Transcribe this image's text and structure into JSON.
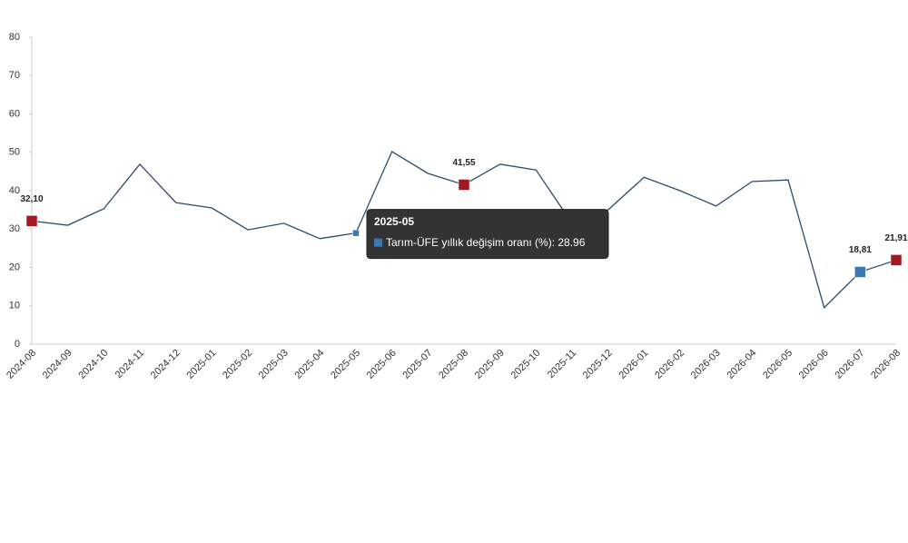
{
  "chart_data": {
    "type": "line",
    "categories": [
      "2024-08",
      "2024-09",
      "2024-10",
      "2024-11",
      "2024-12",
      "2025-01",
      "2025-02",
      "2025-03",
      "2025-04",
      "2025-05",
      "2025-06",
      "2025-07",
      "2025-08",
      "2025-09",
      "2025-10",
      "2025-11",
      "2025-12",
      "2026-01",
      "2026-02",
      "2026-03",
      "2026-04",
      "2026-05",
      "2026-06",
      "2026-07",
      "2026-08"
    ],
    "series": [
      {
        "name": "Tarım-ÜFE yıllık değişim oranı (%)",
        "color": "#2f4b68",
        "values": [
          32.1,
          31.0,
          35.3,
          46.9,
          36.9,
          35.5,
          29.8,
          31.5,
          27.5,
          28.96,
          50.2,
          44.5,
          41.55,
          46.9,
          45.4,
          31.5,
          35.0,
          43.5,
          40.0,
          36.0,
          42.4,
          42.8,
          9.5,
          18.81,
          21.91
        ],
        "value_labels": [
          "32,10",
          null,
          null,
          null,
          null,
          null,
          null,
          null,
          null,
          null,
          null,
          null,
          "41,55",
          null,
          null,
          null,
          null,
          null,
          null,
          null,
          null,
          null,
          null,
          "18,81",
          "21,91"
        ],
        "marker_colors": [
          "#a3191f",
          null,
          null,
          null,
          null,
          null,
          null,
          null,
          null,
          "#3c78b4",
          null,
          null,
          "#a3191f",
          null,
          null,
          null,
          null,
          null,
          null,
          null,
          null,
          null,
          null,
          "#3c78b4",
          "#a3191f"
        ]
      }
    ],
    "ylim": [
      0,
      80
    ],
    "yticks": [
      0,
      10,
      20,
      30,
      40,
      50,
      60,
      70,
      80
    ],
    "tooltip": {
      "title": "2025-05",
      "text": "Tarım-ÜFE yıllık değişim oranı (%): 28.96",
      "index": 9
    }
  }
}
